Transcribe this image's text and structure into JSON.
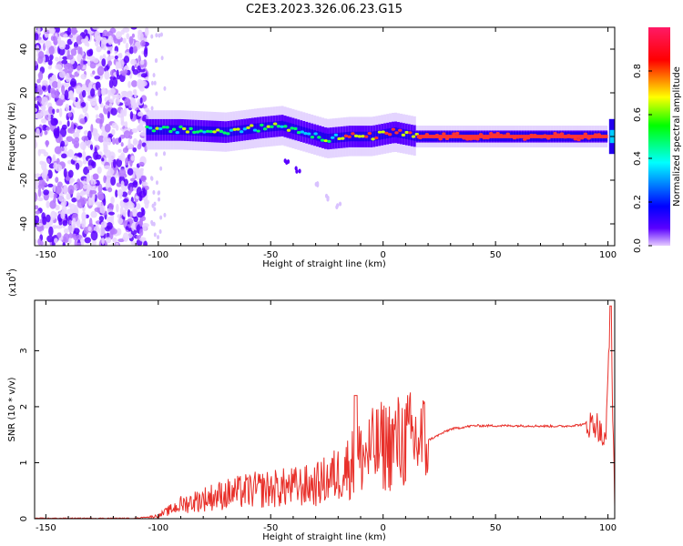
{
  "title": "C2E3.2023.326.06.23.G15",
  "colors": {
    "snr_line": "#e8302a",
    "axis": "#000000",
    "spectral_colormap": [
      "#ffffff",
      "#cc88ff",
      "#5a00ff",
      "#2200ee",
      "#00ccff",
      "#00ff66",
      "#ccff00",
      "#ff3333"
    ],
    "colorbar_stops": [
      "#e6ccff",
      "#5a00ff",
      "#0000ff",
      "#00ffff",
      "#00ff00",
      "#ffff00",
      "#ff0000",
      "#ff1a66"
    ]
  },
  "chart_data": [
    {
      "type": "heatmap",
      "xlabel": "Height of straight line (km)",
      "ylabel": "Frequency (Hz)",
      "xlim": [
        -155,
        103
      ],
      "ylim": [
        -50,
        50
      ],
      "xticks": [
        -150,
        -100,
        -50,
        0,
        50,
        100
      ],
      "yticks": [
        40,
        20,
        0,
        -20,
        -40
      ],
      "colorbar": {
        "label": "Normalized spectral amplitude",
        "range": [
          0,
          1
        ],
        "ticks": [
          "0.0",
          "0.2",
          "0.4",
          "0.6",
          "0.8"
        ]
      },
      "features": {
        "broadband_noise_x_range": [
          -155,
          -105
        ],
        "main_trace": [
          [
            -105,
            3
          ],
          [
            -90,
            3
          ],
          [
            -70,
            2
          ],
          [
            -55,
            4
          ],
          [
            -45,
            5
          ],
          [
            -35,
            2
          ],
          [
            -25,
            -1
          ],
          [
            -15,
            0
          ],
          [
            -5,
            0
          ],
          [
            5,
            2
          ],
          [
            15,
            0
          ],
          [
            100,
            0
          ]
        ],
        "secondary_trace": [
          [
            -43,
            -12
          ],
          [
            -38,
            -15
          ],
          [
            -30,
            -22
          ],
          [
            -25,
            -28
          ],
          [
            -20,
            -32
          ]
        ]
      }
    },
    {
      "type": "line",
      "xlabel": "Height of straight line (km)",
      "ylabel": "SNR (10 * v/v)",
      "multiplier_label": "(x10",
      "multiplier_exponent": "4",
      "xlim": [
        -155,
        103
      ],
      "ylim": [
        0,
        3.9
      ],
      "xticks": [
        -150,
        -100,
        -50,
        0,
        50,
        100
      ],
      "yticks": [
        0,
        1,
        2,
        3
      ],
      "series": [
        {
          "envelope": [
            [
              -155,
              0.0
            ],
            [
              -110,
              0.0
            ],
            [
              -100,
              0.05
            ],
            [
              -90,
              0.25
            ],
            [
              -75,
              0.4
            ],
            [
              -60,
              0.5
            ],
            [
              -45,
              0.55
            ],
            [
              -30,
              0.6
            ],
            [
              -20,
              0.8
            ],
            [
              -10,
              1.1
            ],
            [
              0,
              1.3
            ],
            [
              10,
              1.4
            ],
            [
              20,
              1.4
            ],
            [
              30,
              1.6
            ],
            [
              40,
              1.66
            ],
            [
              60,
              1.66
            ],
            [
              80,
              1.65
            ],
            [
              95,
              1.7
            ],
            [
              99,
              1.3
            ],
            [
              101,
              3.8
            ],
            [
              103,
              0.4
            ]
          ]
        }
      ]
    }
  ]
}
